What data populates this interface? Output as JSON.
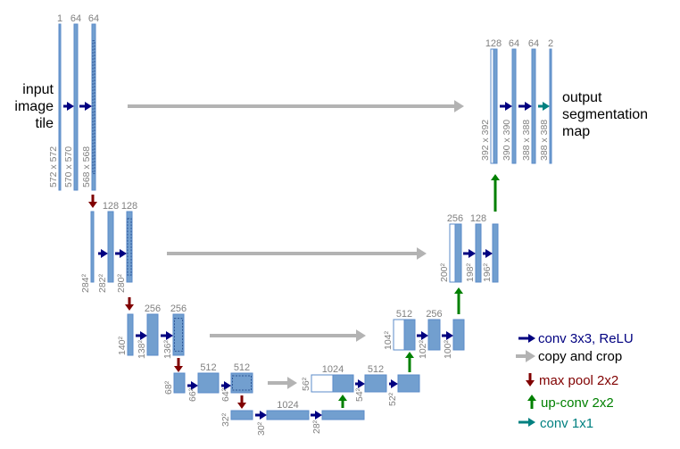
{
  "input_label": [
    "input",
    "image",
    "tile"
  ],
  "output_label": [
    "output",
    "segmentation",
    "map"
  ],
  "blocks": [
    {
      "channels": "1",
      "size": "572 x 572"
    },
    {
      "channels": "64",
      "size": "570 x 570"
    },
    {
      "channels": "64",
      "size": "568 x 568"
    },
    {
      "channels": "",
      "size": "284²"
    },
    {
      "channels": "128",
      "size": "282²"
    },
    {
      "channels": "128",
      "size": "280²"
    },
    {
      "channels": "",
      "size": "140²"
    },
    {
      "channels": "256",
      "size": "138²"
    },
    {
      "channels": "256",
      "size": "136²"
    },
    {
      "channels": "",
      "size": "68²"
    },
    {
      "channels": "512",
      "size": "66²"
    },
    {
      "channels": "512",
      "size": "64²"
    },
    {
      "channels": "",
      "size": "32²"
    },
    {
      "channels": "1024",
      "size": "30²"
    },
    {
      "channels": "",
      "size": "28²"
    },
    {
      "channels": "1024",
      "size": "56²"
    },
    {
      "channels": "512",
      "size": "54²"
    },
    {
      "channels": "",
      "size": "52²"
    },
    {
      "channels": "512",
      "size": "104²"
    },
    {
      "channels": "256",
      "size": "102²"
    },
    {
      "channels": "",
      "size": "100²"
    },
    {
      "channels": "256",
      "size": "200²"
    },
    {
      "channels": "128",
      "size": "198²"
    },
    {
      "channels": "",
      "size": "196²"
    },
    {
      "channels": "128",
      "size": "392 x 392"
    },
    {
      "channels": "64",
      "size": "390 x 390"
    },
    {
      "channels": "64",
      "size": "388 x 388"
    },
    {
      "channels": "2",
      "size": "388 x 388"
    }
  ],
  "legend": [
    {
      "label": "conv 3x3, ReLU",
      "color": "#000080",
      "icon": "arrow-right"
    },
    {
      "label": "copy and crop",
      "color": "#000000",
      "arrow_color": "#b3b3b3",
      "icon": "arrow-right"
    },
    {
      "label": "max pool 2x2",
      "color": "#800000",
      "icon": "arrow-down"
    },
    {
      "label": "up-conv 2x2",
      "color": "#008000",
      "icon": "arrow-up"
    },
    {
      "label": "conv 1x1",
      "color": "#008080",
      "icon": "arrow-right"
    }
  ],
  "colors": {
    "feature_map": "#729fcf",
    "conv": "#000080",
    "copy": "#b3b3b3",
    "pool": "#800000",
    "upconv": "#008000",
    "conv1x1": "#008080"
  }
}
